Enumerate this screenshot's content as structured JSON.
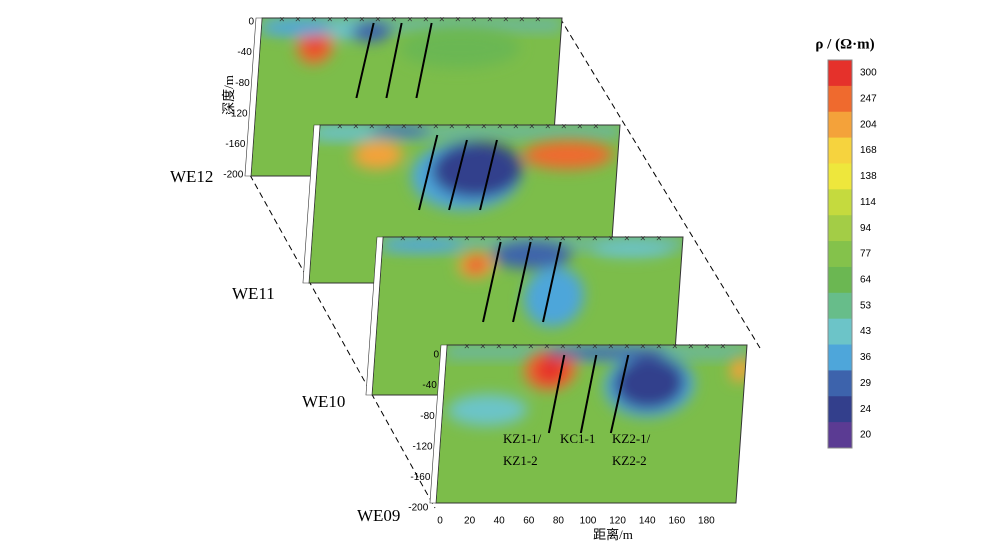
{
  "colorbar": {
    "title": "ρ / (Ω·m)",
    "labels": [
      "300",
      "247",
      "204",
      "168",
      "138",
      "114",
      "94",
      "77",
      "64",
      "53",
      "43",
      "36",
      "29",
      "24",
      "20"
    ],
    "colors": [
      "#e5312b",
      "#ef6a2e",
      "#f4a23a",
      "#f6d33e",
      "#eee73c",
      "#c5da3e",
      "#a3cd46",
      "#84c24b",
      "#6bb752",
      "#67bd8a",
      "#6cc4c8",
      "#4ea6da",
      "#3d63ac",
      "#333f8c",
      "#5b3b93"
    ]
  },
  "sections": [
    "WE12",
    "WE11",
    "WE10",
    "WE09"
  ],
  "axes": {
    "y_label": "深度/m",
    "y_ticks": [
      "0",
      "-40",
      "-80",
      "-120",
      "-160",
      "-200"
    ],
    "x_label": "距离/m",
    "x_ticks": [
      "0",
      "20",
      "40",
      "60",
      "80",
      "100",
      "120",
      "140",
      "160",
      "180"
    ]
  },
  "boreholes": [
    "KZ1-1/",
    "KZ1-2",
    "KC1-1",
    "KZ2-1/",
    "KZ2-2"
  ]
}
